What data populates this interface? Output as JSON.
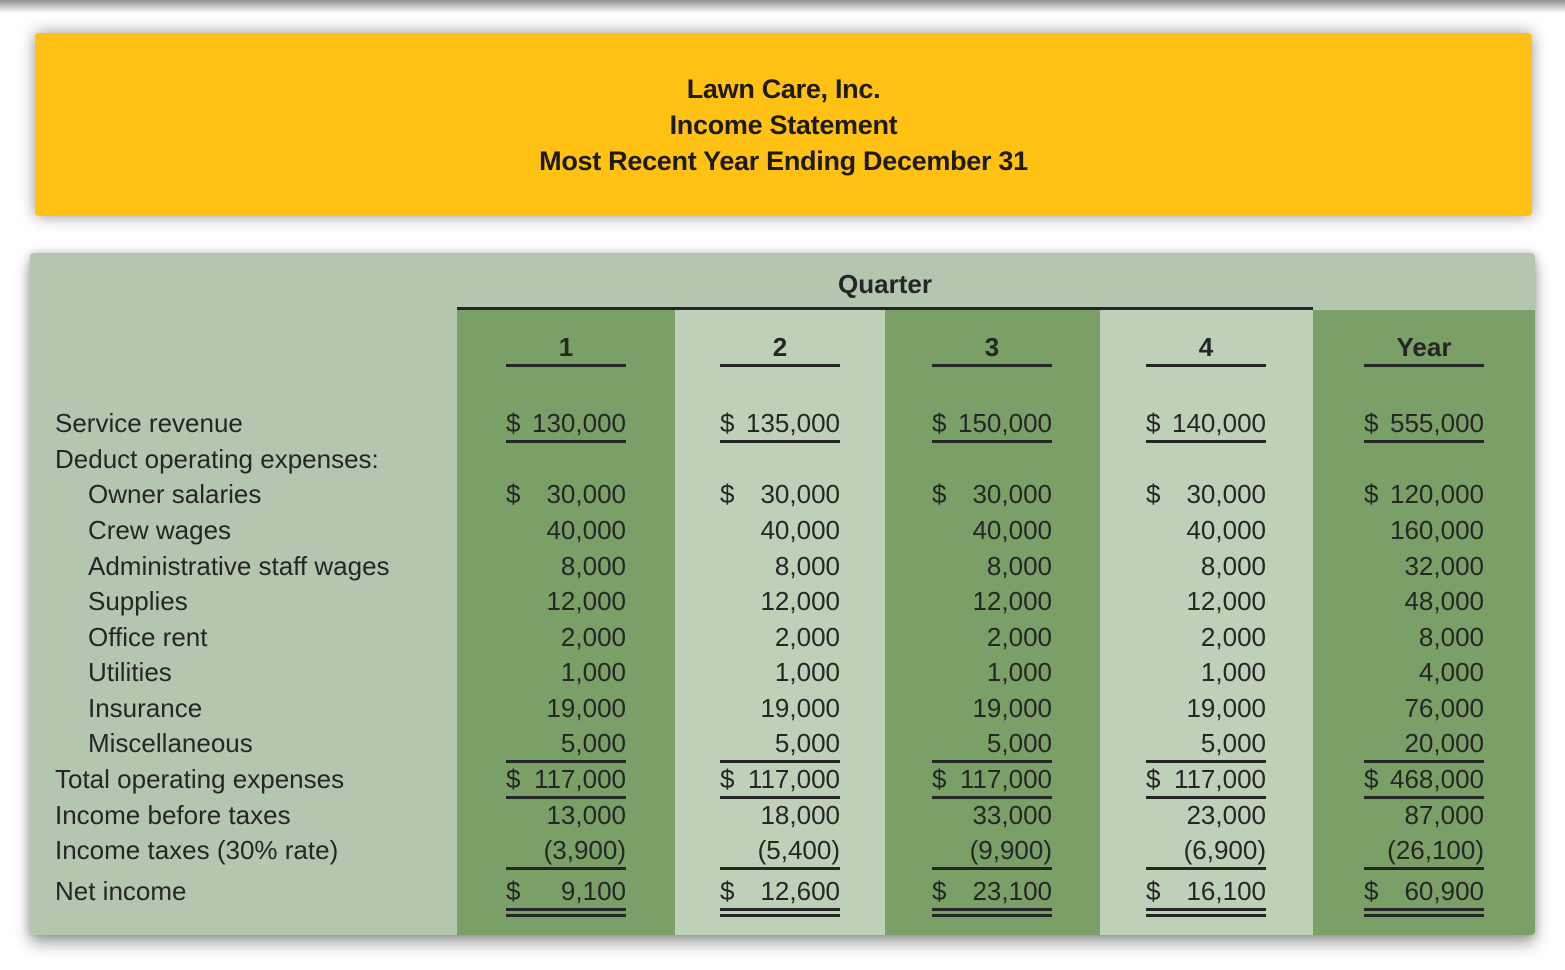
{
  "colors": {
    "header_bg": "#ffc114",
    "table_bg": "#b4c6b0",
    "band_dark": "#7aa068",
    "band_light": "#bfd0b9",
    "text": "#262626",
    "rule": "#262626"
  },
  "header": {
    "line1": "Lawn Care, Inc.",
    "line2": "Income Statement",
    "line3": "Most Recent Year Ending December 31"
  },
  "table": {
    "group_header": "Quarter",
    "columns": [
      "1",
      "2",
      "3",
      "4",
      "Year"
    ],
    "rows": [
      {
        "label": "Service revenue",
        "indent": false,
        "rule": "single",
        "values": [
          "$130,000",
          "$135,000",
          "$ 150,000",
          "$ 140,000",
          "$555,000"
        ]
      },
      {
        "label": "Deduct operating expenses:",
        "indent": false,
        "rule": "none",
        "values": [
          "",
          "",
          "",
          "",
          ""
        ]
      },
      {
        "label": "Owner salaries",
        "indent": true,
        "rule": "none",
        "values": [
          "$  30,000",
          "$  30,000",
          "$  30,000",
          "$  30,000",
          "$120,000"
        ]
      },
      {
        "label": "Crew wages",
        "indent": true,
        "rule": "none",
        "values": [
          "40,000",
          "40,000",
          "40,000",
          "40,000",
          "160,000"
        ]
      },
      {
        "label": "Administrative staff wages",
        "indent": true,
        "rule": "none",
        "values": [
          "8,000",
          "8,000",
          "8,000",
          "8,000",
          "32,000"
        ]
      },
      {
        "label": "Supplies",
        "indent": true,
        "rule": "none",
        "values": [
          "12,000",
          "12,000",
          "12,000",
          "12,000",
          "48,000"
        ]
      },
      {
        "label": "Office rent",
        "indent": true,
        "rule": "none",
        "values": [
          "2,000",
          "2,000",
          "2,000",
          "2,000",
          "8,000"
        ]
      },
      {
        "label": "Utilities",
        "indent": true,
        "rule": "none",
        "values": [
          "1,000",
          "1,000",
          "1,000",
          "1,000",
          "4,000"
        ]
      },
      {
        "label": "Insurance",
        "indent": true,
        "rule": "none",
        "values": [
          "19,000",
          "19,000",
          "19,000",
          "19,000",
          "76,000"
        ]
      },
      {
        "label": "Miscellaneous",
        "indent": true,
        "rule": "single",
        "values": [
          "5,000",
          "5,000",
          "5,000",
          "5,000",
          "20,000"
        ]
      },
      {
        "label": "Total operating expenses",
        "indent": false,
        "rule": "single",
        "values": [
          "$117,000",
          "$117,000",
          "$ 117,000",
          "$ 117,000",
          "$468,000"
        ]
      },
      {
        "label": "Income before taxes",
        "indent": false,
        "rule": "none",
        "values": [
          "13,000",
          "18,000",
          "33,000",
          "23,000",
          "87,000"
        ]
      },
      {
        "label": "Income taxes (30% rate)",
        "indent": false,
        "rule": "single",
        "values": [
          "(3,900)",
          "(5,400)",
          "(9,900)",
          "(6,900)",
          "(26,100)"
        ]
      },
      {
        "label": "Net income",
        "indent": false,
        "rule": "double",
        "values": [
          "$  9,100",
          "$  12,600",
          "$  23,100",
          "$  16,100",
          "$  60,900"
        ]
      }
    ]
  }
}
